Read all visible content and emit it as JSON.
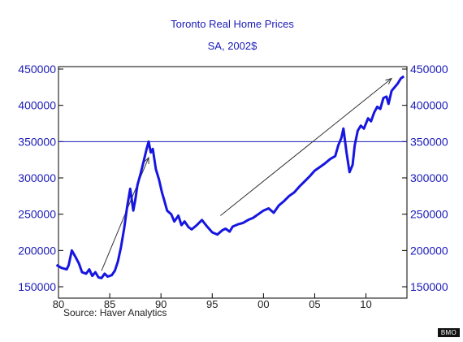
{
  "chart_data": {
    "type": "line",
    "title": "Toronto Real Home Prices",
    "subtitle": "SA, 2002$",
    "source": "Source: Haver Analytics",
    "ylim": [
      150000,
      450000
    ],
    "yticks": [
      150000,
      200000,
      250000,
      300000,
      350000,
      400000,
      450000
    ],
    "ytick_labels": [
      "150000",
      "200000",
      "250000",
      "300000",
      "350000",
      "400000",
      "450000"
    ],
    "xlim": [
      1980,
      2014
    ],
    "xticks": [
      1980,
      1985,
      1990,
      1995,
      2000,
      2005,
      2010
    ],
    "xtick_labels": [
      "80",
      "85",
      "90",
      "95",
      "00",
      "05",
      "10"
    ],
    "grid": false,
    "reference_line": {
      "y": 350000
    },
    "colors": {
      "series": "#1616e0",
      "axis_text": "#1a1ab8",
      "title": "#1a1ab8",
      "frame": "#000000"
    },
    "arrows": [
      {
        "from": [
          1984.2,
          172000
        ],
        "to": [
          1988.8,
          328000
        ]
      },
      {
        "from": [
          1995.8,
          248000
        ],
        "to": [
          2012.5,
          437000
        ]
      }
    ],
    "series": [
      {
        "x": [
          1979.8,
          1980.3,
          1980.8,
          1981.0,
          1981.3,
          1981.7,
          1982.0,
          1982.3,
          1982.7,
          1983.0,
          1983.3,
          1983.6,
          1983.9,
          1984.2,
          1984.5,
          1984.8,
          1985.2,
          1985.5,
          1985.8,
          1986.1,
          1986.4,
          1986.7,
          1987.0,
          1987.3,
          1987.5,
          1987.7,
          1988.0,
          1988.3,
          1988.6,
          1988.8,
          1989.0,
          1989.2,
          1989.5,
          1989.8,
          1990.1,
          1990.3,
          1990.6,
          1991.0,
          1991.3,
          1991.7,
          1992.0,
          1992.3,
          1992.7,
          1993.0,
          1993.5,
          1994.0,
          1994.5,
          1995.0,
          1995.5,
          1996.0,
          1996.3,
          1996.7,
          1997.0,
          1997.5,
          1998.0,
          1998.5,
          1999.0,
          1999.5,
          2000.0,
          2000.5,
          2001.0,
          2001.5,
          2002.0,
          2002.5,
          2003.0,
          2003.5,
          2004.0,
          2004.5,
          2005.0,
          2005.5,
          2006.0,
          2006.5,
          2007.0,
          2007.3,
          2007.6,
          2007.8,
          2008.1,
          2008.4,
          2008.7,
          2008.9,
          2009.2,
          2009.5,
          2009.8,
          2010.2,
          2010.5,
          2010.8,
          2011.1,
          2011.4,
          2011.7,
          2012.0,
          2012.2,
          2012.5,
          2012.8,
          2013.1,
          2013.4,
          2013.7
        ],
        "y": [
          180000,
          176000,
          174000,
          180000,
          200000,
          190000,
          182000,
          170000,
          168000,
          174000,
          165000,
          170000,
          163000,
          162000,
          168000,
          164000,
          166000,
          172000,
          185000,
          205000,
          230000,
          260000,
          285000,
          255000,
          270000,
          290000,
          305000,
          322000,
          340000,
          350000,
          335000,
          340000,
          312000,
          298000,
          280000,
          270000,
          255000,
          250000,
          240000,
          248000,
          235000,
          240000,
          232000,
          229000,
          235000,
          242000,
          233000,
          225000,
          222000,
          228000,
          230000,
          226000,
          233000,
          236000,
          238000,
          242000,
          245000,
          250000,
          255000,
          258000,
          252000,
          262000,
          268000,
          275000,
          280000,
          288000,
          295000,
          302000,
          310000,
          315000,
          320000,
          326000,
          330000,
          345000,
          355000,
          368000,
          335000,
          308000,
          318000,
          345000,
          365000,
          372000,
          368000,
          382000,
          378000,
          390000,
          398000,
          395000,
          410000,
          412000,
          402000,
          420000,
          425000,
          430000,
          437000,
          440000
        ]
      }
    ]
  }
}
